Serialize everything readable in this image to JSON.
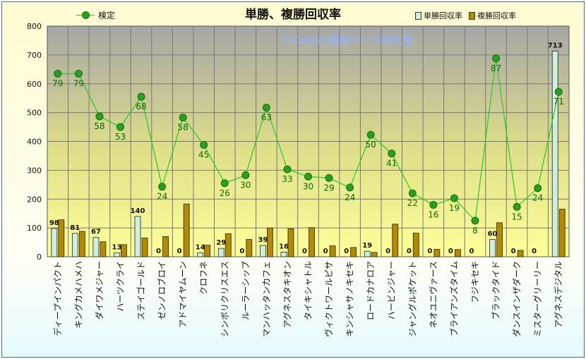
{
  "chart_data": {
    "type": "bar",
    "title": "単勝、複勝回収率",
    "watermark": "©Caniの競馬データ研究室",
    "ylim": [
      0,
      800
    ],
    "yticks": [
      0,
      100,
      200,
      300,
      400,
      500,
      600,
      700,
      800
    ],
    "grid": true,
    "legend_placement": "top",
    "categories": [
      "ディープインパクト",
      "キングカメハメハ",
      "ダイワメジャー",
      "ハーツクライ",
      "ステイゴールド",
      "ゼンノロブロイ",
      "アドマイヤムーン",
      "クロフネ",
      "シンボリクリスエス",
      "ルーラーシップ",
      "マンハッタンカフェ",
      "アグネスタキオン",
      "タイキシャトル",
      "ヴィクトワールピサ",
      "キンシャサノキセキ",
      "ロードカナロア",
      "ハービンジャー",
      "ジャングルポケット",
      "ネオユニヴァース",
      "ブライアンズタイム",
      "フジキセキ",
      "ブラックタイド",
      "ダンスインザダーク",
      "ミスターグリーリー",
      "アグネスデジタル"
    ],
    "series": [
      {
        "name": "単勝回収率",
        "type": "bar",
        "color": "#cfeee0",
        "values": [
          98,
          81,
          67,
          13,
          140,
          0,
          0,
          14,
          29,
          0,
          39,
          16,
          0,
          0,
          0,
          19,
          0,
          0,
          0,
          0,
          0,
          60,
          0,
          0,
          713
        ]
      },
      {
        "name": "複勝回収率",
        "type": "bar",
        "color": "#b38a00",
        "values": [
          128,
          88,
          52,
          42,
          65,
          70,
          183,
          40,
          80,
          60,
          100,
          97,
          101,
          38,
          32,
          15,
          113,
          82,
          26,
          25,
          0,
          118,
          22,
          0,
          165
        ]
      },
      {
        "name": "検定",
        "type": "line",
        "color": "#22cc22",
        "values": [
          635,
          635,
          487,
          450,
          555,
          243,
          483,
          388,
          255,
          283,
          517,
          303,
          278,
          273,
          240,
          423,
          358,
          220,
          180,
          203,
          125,
          688,
          173,
          238,
          572
        ],
        "labels": [
          79,
          79,
          58,
          53,
          68,
          24,
          58,
          45,
          26,
          30,
          63,
          33,
          30,
          29,
          24,
          50,
          41,
          22,
          16,
          19,
          8,
          87,
          15,
          24,
          71
        ]
      }
    ]
  },
  "colors": {
    "plot_bg_top": "#a6a6a6",
    "plot_bg_bottom": "#ffff99",
    "bar1": "#cfeee0",
    "bar2": "#b38a00",
    "line": "#22cc22",
    "marker": "#2d9d1f",
    "watermark": "#9ab0ea"
  }
}
